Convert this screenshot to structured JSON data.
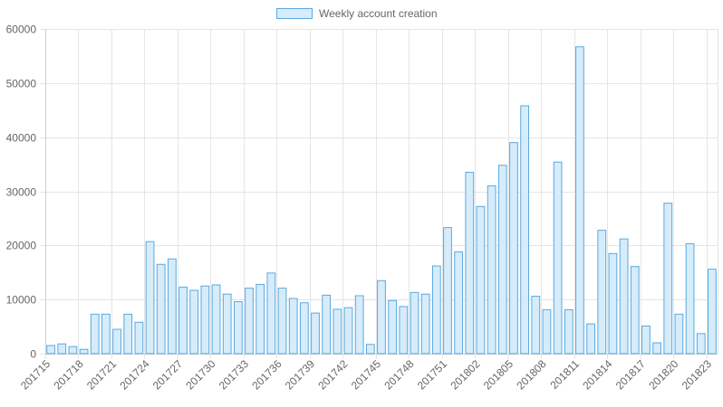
{
  "chart_data": {
    "type": "bar",
    "legend": {
      "position": "top",
      "label": "Weekly account creation"
    },
    "colors": {
      "bar_fill": "#d6ecfa",
      "bar_stroke": "#5aa9df",
      "grid": "#e5e5e5",
      "text": "#666666"
    },
    "grid": true,
    "ylim": [
      0,
      60000
    ],
    "yticks": [
      0,
      10000,
      20000,
      30000,
      40000,
      50000,
      60000
    ],
    "categories": [
      "201715",
      "201716",
      "201717",
      "201718",
      "201719",
      "201720",
      "201721",
      "201722",
      "201723",
      "201724",
      "201725",
      "201726",
      "201727",
      "201728",
      "201729",
      "201730",
      "201731",
      "201732",
      "201733",
      "201734",
      "201735",
      "201736",
      "201737",
      "201738",
      "201739",
      "201740",
      "201741",
      "201742",
      "201743",
      "201744",
      "201745",
      "201746",
      "201747",
      "201748",
      "201749",
      "201750",
      "201751",
      "201752",
      "201801",
      "201802",
      "201803",
      "201804",
      "201805",
      "201806",
      "201807",
      "201808",
      "201809",
      "201810",
      "201811",
      "201812",
      "201813",
      "201814",
      "201815",
      "201816",
      "201817",
      "201818",
      "201819",
      "201820",
      "201821",
      "201822",
      "201823"
    ],
    "xtick_labels": [
      "201715",
      "201718",
      "201721",
      "201724",
      "201727",
      "201730",
      "201733",
      "201736",
      "201739",
      "201742",
      "201745",
      "201748",
      "201751",
      "201802",
      "201805",
      "201808",
      "201811",
      "201814",
      "201817",
      "201820",
      "201823"
    ],
    "series": [
      {
        "name": "Weekly account creation",
        "values": [
          1500,
          1800,
          1300,
          800,
          7300,
          7300,
          4500,
          7300,
          5800,
          20700,
          16500,
          17500,
          12300,
          11700,
          12500,
          12700,
          11000,
          9600,
          12100,
          12800,
          14900,
          12100,
          10200,
          9400,
          7500,
          10800,
          8200,
          8500,
          10700,
          1700,
          13500,
          9800,
          8700,
          11300,
          11000,
          16200,
          23300,
          18800,
          33500,
          27200,
          31000,
          34800,
          39000,
          45800,
          10600,
          8100,
          35400,
          8100,
          56700,
          5500,
          22800,
          18500,
          21200,
          16100,
          5100,
          2000,
          27800,
          7300,
          20300,
          3700,
          15600
        ]
      }
    ]
  }
}
